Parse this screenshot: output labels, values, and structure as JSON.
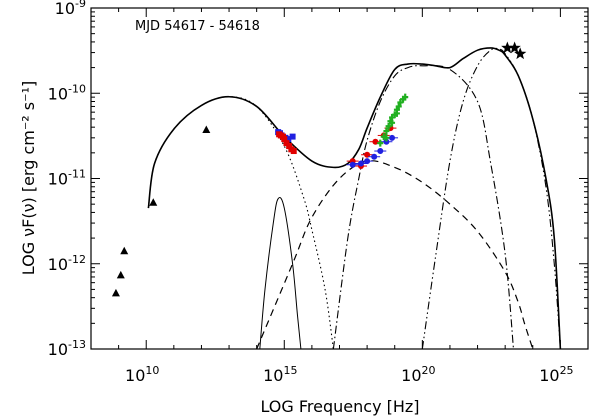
{
  "chart_data": {
    "type": "scatter",
    "annotation": "MJD 54617 - 54618",
    "xlabel": "LOG Frequency [Hz]",
    "ylabel": "LOG νF(ν) [erg cm⁻² s⁻¹]",
    "x_scale": "log",
    "y_scale": "log",
    "xlim": [
      100000000.0,
      1e+26
    ],
    "ylim": [
      1e-13,
      1e-09
    ],
    "x_ticks": [
      {
        "value": 10000000000.0,
        "base": "10",
        "exp": "10"
      },
      {
        "value": 1000000000000000.0,
        "base": "10",
        "exp": "15"
      },
      {
        "value": 1e+20,
        "base": "10",
        "exp": "20"
      },
      {
        "value": 1e+25,
        "base": "10",
        "exp": "25"
      }
    ],
    "y_ticks": [
      {
        "value": 1e-13,
        "base": "10",
        "exp": "-13"
      },
      {
        "value": 1e-12,
        "base": "10",
        "exp": "-12"
      },
      {
        "value": 1e-11,
        "base": "10",
        "exp": "-11"
      },
      {
        "value": 1e-10,
        "base": "10",
        "exp": "-10"
      },
      {
        "value": 1e-09,
        "base": "10",
        "exp": "-9"
      }
    ],
    "curves": [
      {
        "style": "solid-thick",
        "points": [
          [
            12000000000.0,
            4.5e-12
          ],
          [
            20000000000.0,
            1.5e-11
          ],
          [
            100000000000.0,
            3.8e-11
          ],
          [
            1000000000000.0,
            7.2e-11
          ],
          [
            10000000000000.0,
            9.1e-11
          ],
          [
            100000000000000.0,
            7e-11
          ],
          [
            1000000000000000.0,
            3.1e-11
          ],
          [
            1e+16,
            1.6e-11
          ],
          [
            6e+16,
            1.35e-11
          ],
          [
            2e+17,
            1.5e-11
          ],
          [
            5e+17,
            2.2e-11
          ],
          [
            1e+18,
            3.9e-11
          ],
          [
            3e+18,
            9e-11
          ],
          [
            1e+19,
            1.9e-10
          ],
          [
            3e+19,
            2.2e-10
          ],
          [
            1e+20,
            2.2e-10
          ],
          [
            3e+20,
            2.1e-10
          ],
          [
            1e+21,
            2e-10
          ],
          [
            3e+21,
            2.55e-10
          ],
          [
            1e+22,
            3.2e-10
          ],
          [
            3e+22,
            3.4e-10
          ],
          [
            6e+22,
            3.2e-10
          ],
          [
            1e+23,
            2.8e-10
          ],
          [
            3e+23,
            1.6e-10
          ],
          [
            1e+24,
            5e-11
          ],
          [
            3e+24,
            1e-11
          ],
          [
            6e+24,
            2e-12
          ],
          [
            1e+25,
            1e-13
          ]
        ]
      },
      {
        "style": "dotted",
        "points": [
          [
            12000000000.0,
            4.5e-12
          ],
          [
            20000000000.0,
            1.5e-11
          ],
          [
            100000000000.0,
            3.8e-11
          ],
          [
            1000000000000.0,
            7.2e-11
          ],
          [
            10000000000000.0,
            9.1e-11
          ],
          [
            100000000000000.0,
            7e-11
          ],
          [
            1000000000000000.0,
            2.4e-11
          ],
          [
            5000000000000000.0,
            6e-12
          ],
          [
            1e+16,
            2.5e-12
          ],
          [
            3e+16,
            5e-13
          ],
          [
            6e+16,
            1e-13
          ]
        ]
      },
      {
        "style": "solid-thin",
        "points": [
          [
            130000000000000.0,
            1e-13
          ],
          [
            200000000000000.0,
            5e-13
          ],
          [
            400000000000000.0,
            3e-12
          ],
          [
            600000000000000.0,
            5.8e-12
          ],
          [
            1000000000000000.0,
            4.5e-12
          ],
          [
            2000000000000000.0,
            1e-12
          ],
          [
            3000000000000000.0,
            2.5e-13
          ],
          [
            4000000000000000.0,
            1e-13
          ]
        ]
      },
      {
        "style": "dashed",
        "points": [
          [
            100000000000000.0,
            1e-13
          ],
          [
            2000000000000000.0,
            1e-12
          ],
          [
            1e+16,
            3.5e-12
          ],
          [
            1e+17,
            1e-11
          ],
          [
            1e+18,
            1.6e-11
          ],
          [
            1e+19,
            1.35e-11
          ],
          [
            1e+20,
            9e-12
          ],
          [
            1e+21,
            5e-12
          ],
          [
            1e+22,
            2.4e-12
          ],
          [
            1e+23,
            8e-13
          ],
          [
            3e+23,
            3.5e-13
          ],
          [
            5e+23,
            2e-13
          ],
          [
            1e+24,
            1e-13
          ]
        ]
      },
      {
        "style": "dash-dot",
        "points": [
          [
            6e+16,
            1e-13
          ],
          [
            2e+17,
            2e-12
          ],
          [
            5e+17,
            1e-11
          ],
          [
            1e+18,
            2.8e-11
          ],
          [
            3e+18,
            8e-11
          ],
          [
            1e+19,
            1.6e-10
          ],
          [
            3e+19,
            2e-10
          ],
          [
            1e+20,
            2.1e-10
          ],
          [
            1e+21,
            1.9e-10
          ],
          [
            1e+22,
            8e-11
          ],
          [
            3e+22,
            1.5e-11
          ],
          [
            1e+23,
            1.3e-12
          ],
          [
            2e+23,
            1e-13
          ]
        ]
      },
      {
        "style": "dash-dot-dot",
        "points": [
          [
            1e+20,
            1e-13
          ],
          [
            3e+20,
            1.2e-12
          ],
          [
            1e+21,
            1.6e-11
          ],
          [
            3e+21,
            8e-11
          ],
          [
            1e+22,
            2.1e-10
          ],
          [
            3e+22,
            3.2e-10
          ],
          [
            6e+22,
            3.3e-10
          ],
          [
            1e+23,
            2.9e-10
          ],
          [
            3e+23,
            1.6e-10
          ],
          [
            1e+24,
            5e-11
          ],
          [
            3e+24,
            8e-12
          ],
          [
            6e+24,
            1e-12
          ],
          [
            1e+25,
            1e-13
          ]
        ]
      }
    ],
    "series": [
      {
        "marker": "triangle",
        "color": "#000000",
        "points": [
          [
            800000000.0,
            4.5e-13
          ],
          [
            1200000000.0,
            7.3e-13
          ],
          [
            1600000000.0,
            1.4e-12
          ],
          [
            18000000000.0,
            5.2e-12
          ],
          [
            1500000000000.0,
            3.7e-11
          ]
        ]
      },
      {
        "marker": "square",
        "color": "#2020e0",
        "points": [
          [
            600000000000000.0,
            3.5e-11
          ],
          [
            700000000000000.0,
            3.4e-11
          ],
          [
            800000000000000.0,
            3.2e-11
          ],
          [
            1100000000000000.0,
            3e-11
          ],
          [
            1400000000000000.0,
            2.9e-11
          ],
          [
            2000000000000000.0,
            3.1e-11
          ]
        ]
      },
      {
        "marker": "square",
        "color": "#e00000",
        "points": [
          [
            650000000000000.0,
            3.3e-11
          ],
          [
            750000000000000.0,
            3.2e-11
          ],
          [
            900000000000000.0,
            3.1e-11
          ],
          [
            1000000000000000.0,
            2.9e-11
          ],
          [
            1200000000000000.0,
            2.6e-11
          ],
          [
            1500000000000000.0,
            2.4e-11
          ],
          [
            1800000000000000.0,
            2.2e-11
          ],
          [
            2200000000000000.0,
            2.1e-11
          ]
        ]
      },
      {
        "marker": "circle",
        "color": "#e00000",
        "points": [
          [
            3e+17,
            1.6e-11
          ],
          [
            6e+17,
            1.4e-11
          ],
          [
            1e+18,
            1.9e-11
          ],
          [
            2e+18,
            2.7e-11
          ],
          [
            4e+18,
            3.2e-11
          ],
          [
            7e+18,
            3.9e-11
          ]
        ]
      },
      {
        "marker": "circle",
        "color": "#2020e0",
        "points": [
          [
            3e+17,
            1.45e-11
          ],
          [
            6e+17,
            1.5e-11
          ],
          [
            1e+18,
            1.6e-11
          ],
          [
            1.8e+18,
            1.8e-11
          ],
          [
            3e+18,
            2.1e-11
          ],
          [
            5e+18,
            2.7e-11
          ],
          [
            8e+18,
            3e-11
          ]
        ]
      },
      {
        "marker": "plus",
        "color": "#20b020",
        "points": [
          [
            3e+18,
            2.6e-11
          ],
          [
            4e+18,
            3.1e-11
          ],
          [
            5e+18,
            3.6e-11
          ],
          [
            6e+18,
            4.1e-11
          ],
          [
            7e+18,
            4.7e-11
          ],
          [
            8e+18,
            5.2e-11
          ],
          [
            1e+19,
            5.6e-11
          ],
          [
            1.2e+19,
            6.4e-11
          ],
          [
            1.4e+19,
            7e-11
          ],
          [
            1.6e+19,
            7.8e-11
          ],
          [
            2e+19,
            8.5e-11
          ],
          [
            2.4e+19,
            9e-11
          ],
          [
            5e+18,
            3e-11
          ],
          [
            8e+18,
            4.5e-11
          ],
          [
            1.2e+19,
            5.8e-11
          ]
        ]
      },
      {
        "marker": "star",
        "color": "#000000",
        "points": [
          [
            1.2e+23,
            3.4e-10
          ],
          [
            2.2e+23,
            3.4e-10
          ],
          [
            3.5e+23,
            2.9e-10
          ]
        ]
      }
    ]
  }
}
